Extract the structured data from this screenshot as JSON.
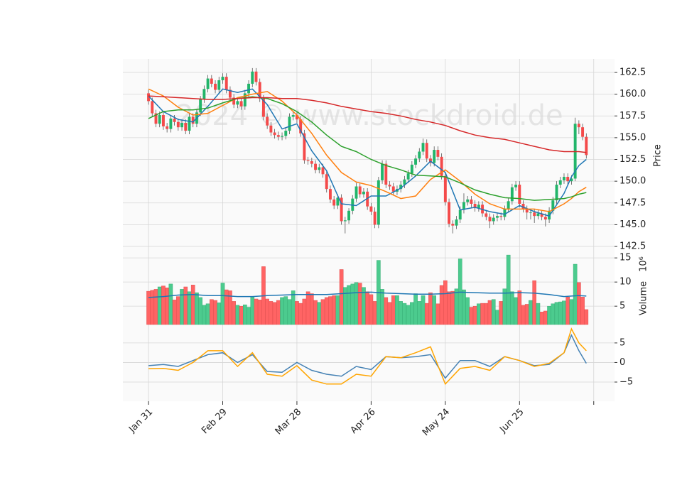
{
  "chart_data": {
    "type": "candlestick",
    "watermark": "2024 © www.stockdroid.de",
    "xlim": [
      -6.9,
      125.6
    ],
    "xticks": [
      {
        "value": 0,
        "label": "Jan 31"
      },
      {
        "value": 20,
        "label": "Feb 29"
      },
      {
        "value": 40,
        "label": "Mar 28"
      },
      {
        "value": 60,
        "label": "Apr 26"
      },
      {
        "value": 80,
        "label": "May 24"
      },
      {
        "value": 100,
        "label": "Jun 25"
      },
      {
        "value": 120,
        "label": null
      }
    ],
    "up_color": "#22b56a",
    "down_color": "#f44a4a",
    "grid": true,
    "ylim": [
      141.85,
      164.05
    ],
    "yticks": [
      142.5,
      {
        "value": 145,
        "label": "145.0"
      },
      147.5,
      {
        "value": 150,
        "label": "150.0"
      },
      152.5,
      {
        "value": 155,
        "label": "155.0"
      },
      157.5,
      {
        "value": 160,
        "label": "160.0"
      },
      162.5
    ],
    "ylabel": "Price",
    "open": [
      160.1,
      159.2,
      157.8,
      156.6,
      157.6,
      156.3,
      156.0,
      157.2,
      156.8,
      156.2,
      156.7,
      155.8,
      157.4,
      156.6,
      157.9,
      159.4,
      160.6,
      161.8,
      161.2,
      160.5,
      161.6,
      162.0,
      160.5,
      159.6,
      158.8,
      159.2,
      158.6,
      160.1,
      161.2,
      162.6,
      161.4,
      159.5,
      157.4,
      156.4,
      155.6,
      155.3,
      155.1,
      155.2,
      155.8,
      157.4,
      157.6,
      157.1,
      155.5,
      152.4,
      152.3,
      152.0,
      151.3,
      151.6,
      150.8,
      149.1,
      147.9,
      147.2,
      148.1,
      145.4,
      145.5,
      146.6,
      148.0,
      149.4,
      148.5,
      148.8,
      147.1,
      146.5,
      145.0,
      150.1,
      152.0,
      149.6,
      149.4,
      148.8,
      149.1,
      149.6,
      150.2,
      150.9,
      151.9,
      152.6,
      153.4,
      154.4,
      152.6,
      152.1,
      153.6,
      152.8,
      150.6,
      147.6,
      145.1,
      144.9,
      145.6,
      146.7,
      147.6,
      147.9,
      147.4,
      146.9,
      147.3,
      146.3,
      145.9,
      145.4,
      145.8,
      146.0,
      145.9,
      146.8,
      147.7,
      149.3,
      149.6,
      147.4,
      146.8,
      146.4,
      146.4,
      146.0,
      146.3,
      145.9,
      145.6,
      146.6,
      147.8,
      149.6,
      150.1,
      150.5,
      150.0,
      150.3,
      156.6,
      156.2,
      155.1
    ],
    "high": [
      160.5,
      159.6,
      158.2,
      158.0,
      158.0,
      156.7,
      157.6,
      157.6,
      157.2,
      157.1,
      157.1,
      157.8,
      157.8,
      158.3,
      159.8,
      161.0,
      162.2,
      162.2,
      161.6,
      162.0,
      162.4,
      162.4,
      160.9,
      160.0,
      159.6,
      159.6,
      160.5,
      161.6,
      163.0,
      163.0,
      161.8,
      159.9,
      157.8,
      156.8,
      156.0,
      155.7,
      155.6,
      156.2,
      157.8,
      158.0,
      158.0,
      157.5,
      155.9,
      152.8,
      152.7,
      152.4,
      152.0,
      152.0,
      151.2,
      149.5,
      148.3,
      148.5,
      148.5,
      145.9,
      146.9,
      148.4,
      149.8,
      149.8,
      149.2,
      149.2,
      147.5,
      147.0,
      150.5,
      152.4,
      152.4,
      150.0,
      149.8,
      149.5,
      150.0,
      150.6,
      151.3,
      152.3,
      153.0,
      153.8,
      154.9,
      154.8,
      153.0,
      154.0,
      154.0,
      153.2,
      151.0,
      148.0,
      145.5,
      146.0,
      147.1,
      148.6,
      148.3,
      148.3,
      147.8,
      147.7,
      147.7,
      146.7,
      146.3,
      146.2,
      146.4,
      146.4,
      147.2,
      148.1,
      149.7,
      150.0,
      150.0,
      147.8,
      147.2,
      146.8,
      146.8,
      146.7,
      146.7,
      146.3,
      147.0,
      148.2,
      150.0,
      150.5,
      150.9,
      150.9,
      150.7,
      157.3,
      157.0,
      156.6,
      155.5
    ],
    "low": [
      158.8,
      157.4,
      156.2,
      156.2,
      155.9,
      155.6,
      155.6,
      156.4,
      155.8,
      155.8,
      155.4,
      155.4,
      156.2,
      156.2,
      157.5,
      159.0,
      160.2,
      160.8,
      160.1,
      160.1,
      161.2,
      160.1,
      159.2,
      158.4,
      158.4,
      158.2,
      158.2,
      159.7,
      160.8,
      161.0,
      159.1,
      157.0,
      156.0,
      155.2,
      154.9,
      154.7,
      154.7,
      154.8,
      155.4,
      157.0,
      156.7,
      155.1,
      152.0,
      151.9,
      151.6,
      150.9,
      150.9,
      150.4,
      148.7,
      147.5,
      146.8,
      146.8,
      145.0,
      144.0,
      145.1,
      146.2,
      147.6,
      148.1,
      148.1,
      146.7,
      146.1,
      144.6,
      144.6,
      149.7,
      149.2,
      149.0,
      148.4,
      148.4,
      148.7,
      149.2,
      149.8,
      150.5,
      151.5,
      152.2,
      153.0,
      152.2,
      151.7,
      151.7,
      152.4,
      150.2,
      147.2,
      144.7,
      144.0,
      144.5,
      145.2,
      146.3,
      147.2,
      147.0,
      146.5,
      146.5,
      145.9,
      145.5,
      144.6,
      145.0,
      145.4,
      145.5,
      145.5,
      146.4,
      147.3,
      148.9,
      147.0,
      146.4,
      145.6,
      145.6,
      145.2,
      145.6,
      145.5,
      144.8,
      145.2,
      146.2,
      147.4,
      149.2,
      149.7,
      149.6,
      149.6,
      150.0,
      155.4,
      154.7,
      152.6
    ],
    "close": [
      159.2,
      157.8,
      156.6,
      157.6,
      156.3,
      156.0,
      157.2,
      156.8,
      156.2,
      156.7,
      155.8,
      157.4,
      156.6,
      157.9,
      159.4,
      160.6,
      161.8,
      161.2,
      160.5,
      161.6,
      162.0,
      160.5,
      159.6,
      158.8,
      159.2,
      158.6,
      160.1,
      161.2,
      162.6,
      161.4,
      159.5,
      157.4,
      156.4,
      155.6,
      155.3,
      155.1,
      155.2,
      155.8,
      157.4,
      157.6,
      157.1,
      155.5,
      152.4,
      152.3,
      152.0,
      151.3,
      151.6,
      150.8,
      149.1,
      147.9,
      147.2,
      148.1,
      145.4,
      145.5,
      146.6,
      148.0,
      149.4,
      148.5,
      148.8,
      147.1,
      146.5,
      145.0,
      150.1,
      152.0,
      149.6,
      149.4,
      148.8,
      149.1,
      149.6,
      150.2,
      150.9,
      151.9,
      152.6,
      153.4,
      154.4,
      152.6,
      152.1,
      153.6,
      152.8,
      150.6,
      147.6,
      145.1,
      144.9,
      145.6,
      146.7,
      147.6,
      147.9,
      147.4,
      146.9,
      147.3,
      146.3,
      145.9,
      145.4,
      145.8,
      146.0,
      145.9,
      146.8,
      147.7,
      149.3,
      149.6,
      147.4,
      146.8,
      146.4,
      146.4,
      146.0,
      146.3,
      145.9,
      145.6,
      146.6,
      147.8,
      149.6,
      150.1,
      150.5,
      150.0,
      150.3,
      156.6,
      156.2,
      155.1,
      153.0
    ],
    "ma_x": [
      0,
      4,
      8,
      12,
      16,
      20,
      24,
      28,
      32,
      36,
      40,
      44,
      48,
      52,
      56,
      60,
      64,
      68,
      72,
      76,
      80,
      84,
      88,
      92,
      96,
      100,
      104,
      108,
      112,
      114,
      116,
      118
    ],
    "series": [
      {
        "color": "#1f77b4",
        "values": [
          159.8,
          158.0,
          157.1,
          156.8,
          158.6,
          160.6,
          160.2,
          160.6,
          158.8,
          156.0,
          156.6,
          153.5,
          151.2,
          147.4,
          147.2,
          148.3,
          148.3,
          149.2,
          150.6,
          152.3,
          151.0,
          146.7,
          147.0,
          146.5,
          146.2,
          147.2,
          146.5,
          146.0,
          148.6,
          150.5,
          151.8,
          152.5
        ]
      },
      {
        "color": "#ff7f0e",
        "values": [
          160.6,
          159.8,
          158.5,
          157.6,
          157.8,
          158.7,
          159.6,
          160.0,
          160.3,
          159.2,
          157.6,
          155.5,
          153.0,
          151.0,
          149.9,
          149.5,
          148.8,
          148.0,
          148.3,
          150.2,
          151.3,
          150.0,
          148.5,
          147.4,
          146.8,
          146.8,
          146.8,
          146.5,
          147.4,
          148.0,
          148.8,
          149.3
        ]
      },
      {
        "color": "#2ca02c",
        "values": [
          157.2,
          158.0,
          158.2,
          158.2,
          158.4,
          159.0,
          159.5,
          159.7,
          159.5,
          158.9,
          158.0,
          156.8,
          155.3,
          154.0,
          153.4,
          152.5,
          151.8,
          151.3,
          150.7,
          150.6,
          150.5,
          149.8,
          149.0,
          148.5,
          148.1,
          148.0,
          147.8,
          147.9,
          148.0,
          148.2,
          148.5,
          148.7
        ]
      },
      {
        "color": "#d62728",
        "values": [
          159.8,
          159.7,
          159.6,
          159.5,
          159.4,
          159.4,
          159.5,
          159.6,
          159.6,
          159.5,
          159.5,
          159.3,
          159.0,
          158.6,
          158.3,
          158.0,
          157.8,
          157.5,
          157.1,
          156.8,
          156.4,
          155.8,
          155.3,
          155.0,
          154.8,
          154.4,
          154.0,
          153.6,
          153.4,
          153.4,
          153.4,
          153.3
        ]
      }
    ],
    "volume": {
      "ylabel": "Volume",
      "offset_label": "10⁶",
      "ylim": [
        1.2,
        16.2
      ],
      "yticks": [
        5,
        10,
        15
      ],
      "up_color": "#4ccb8e",
      "down_color": "#ff6464",
      "values": [
        8.1,
        8.3,
        8.5,
        9.0,
        9.2,
        8.8,
        9.6,
        6.3,
        7.0,
        8.5,
        9.0,
        8.0,
        9.4,
        7.8,
        6.8,
        5.2,
        5.5,
        6.4,
        6.2,
        5.7,
        9.8,
        8.4,
        8.2,
        6.0,
        5.2,
        5.0,
        5.3,
        4.8,
        6.9,
        6.5,
        6.3,
        13.2,
        6.5,
        6.0,
        5.8,
        6.2,
        6.8,
        7.0,
        6.4,
        8.2,
        6.0,
        5.6,
        6.5,
        8.0,
        7.6,
        6.2,
        5.8,
        6.4,
        6.8,
        7.0,
        7.2,
        7.2,
        12.6,
        8.9,
        9.3,
        9.6,
        9.9,
        9.8,
        8.9,
        8.0,
        7.4,
        6.0,
        14.5,
        8.5,
        6.8,
        5.8,
        7.2,
        7.2,
        6.0,
        5.6,
        5.2,
        5.8,
        7.6,
        6.0,
        7.2,
        5.6,
        7.8,
        7.2,
        5.5,
        9.3,
        10.3,
        8.0,
        8.1,
        8.6,
        14.8,
        8.4,
        6.8,
        4.8,
        5.0,
        5.5,
        5.6,
        5.6,
        6.2,
        6.4,
        4.2,
        6.0,
        8.6,
        15.6,
        8.0,
        6.8,
        8.2,
        5.2,
        5.4,
        6.2,
        10.3,
        5.6,
        3.8,
        4.0,
        5.0,
        5.5,
        5.8,
        5.9,
        6.1,
        6.9,
        6.4,
        13.7,
        9.9,
        6.9,
        4.3
      ],
      "series": [
        {
          "color": "#1f77b4",
          "values": [
            6.8,
            7.0,
            7.3,
            7.4,
            7.2,
            7.2,
            7.0,
            7.0,
            7.2,
            7.3,
            7.4,
            7.4,
            7.4,
            7.6,
            7.8,
            7.9,
            7.7,
            7.6,
            7.5,
            7.5,
            7.6,
            7.9,
            7.8,
            7.7,
            7.7,
            7.8,
            7.7,
            7.4,
            7.0,
            7.1,
            7.2,
            7.1
          ]
        }
      ]
    },
    "oscillator": {
      "ylim": [
        -9.9,
        9.7
      ],
      "yticks": [
        {
          "value": -5,
          "label": "−5"
        },
        0,
        5
      ],
      "series": [
        {
          "color": "#4682b4",
          "values": [
            -0.8,
            -0.5,
            -1.0,
            0.5,
            2.0,
            2.5,
            0.0,
            2.0,
            -2.3,
            -2.5,
            0.0,
            -2.0,
            -3.0,
            -3.5,
            -1.0,
            -1.8,
            1.5,
            1.2,
            1.5,
            2.0,
            -4.0,
            0.5,
            0.5,
            -1.0,
            1.5,
            0.5,
            -0.8,
            -0.5,
            2.5,
            7.0,
            3.0,
            -0.2
          ]
        },
        {
          "color": "#ffa500",
          "values": [
            -1.6,
            -1.5,
            -2.0,
            0.0,
            3.0,
            3.0,
            -1.0,
            2.5,
            -3.0,
            -3.5,
            -0.8,
            -4.5,
            -5.5,
            -5.5,
            -3.0,
            -3.5,
            1.5,
            1.2,
            2.5,
            4.0,
            -5.5,
            -1.5,
            -1.0,
            -2.0,
            1.5,
            0.5,
            -1.0,
            -0.2,
            2.5,
            8.6,
            5.0,
            3.0
          ]
        }
      ]
    }
  }
}
